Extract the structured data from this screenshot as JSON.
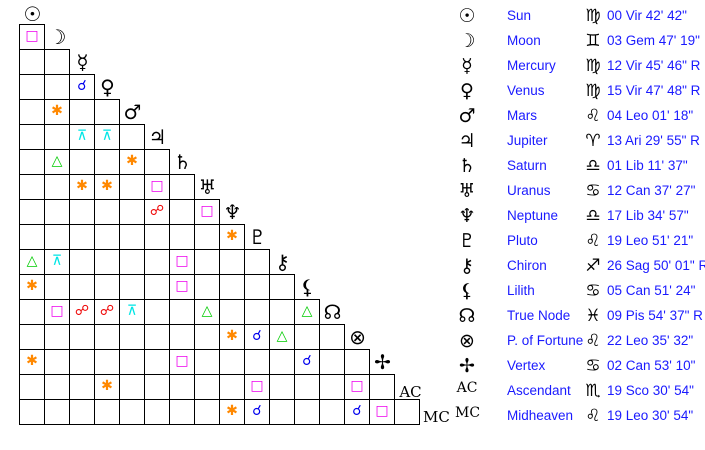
{
  "aspect_colors": {
    "conjunction": "#0000ee",
    "opposition": "#ee0000",
    "square": "#ee00ee",
    "trine": "#00cc00",
    "sextile": "#ff8800",
    "quincunx": "#00e5e5"
  },
  "aspect_glyphs": {
    "conjunction": "☌",
    "opposition": "☍",
    "square": "□",
    "trine": "△",
    "sextile": "✱",
    "quincunx": "⊼"
  },
  "bodies": [
    {
      "glyph": "☉",
      "name": "Sun",
      "sign": "♍",
      "position": "00 Vir 42' 42\""
    },
    {
      "glyph": "☽",
      "name": "Moon",
      "sign": "♊",
      "position": "03 Gem 47' 19\""
    },
    {
      "glyph": "☿",
      "name": "Mercury",
      "sign": "♍",
      "position": "12 Vir 45' 46\" R"
    },
    {
      "glyph": "♀",
      "name": "Venus",
      "sign": "♍",
      "position": "15 Vir 47' 48\" R"
    },
    {
      "glyph": "♂",
      "name": "Mars",
      "sign": "♌",
      "position": "04 Leo 01' 18\""
    },
    {
      "glyph": "♃",
      "name": "Jupiter",
      "sign": "♈",
      "position": "13 Ari 29' 55\" R"
    },
    {
      "glyph": "♄",
      "name": "Saturn",
      "sign": "♎",
      "position": "01 Lib 11' 37\""
    },
    {
      "glyph": "♅",
      "name": "Uranus",
      "sign": "♋",
      "position": "12 Can 37' 27\""
    },
    {
      "glyph": "♆",
      "name": "Neptune",
      "sign": "♎",
      "position": "17 Lib 34' 57\""
    },
    {
      "glyph": "♇",
      "name": "Pluto",
      "sign": "♌",
      "position": "19 Leo 51' 21\""
    },
    {
      "glyph": "⚷",
      "name": "Chiron",
      "sign": "♐",
      "position": "26 Sag 50' 01\" R"
    },
    {
      "glyph": "⚸",
      "name": "Lilith",
      "sign": "♋",
      "position": "05 Can 51' 24\""
    },
    {
      "glyph": "☊",
      "name": "True Node",
      "sign": "♓",
      "position": "09 Pis 54' 37\" R"
    },
    {
      "glyph": "⊗",
      "name": "P. of Fortune",
      "sign": "♌",
      "position": "22 Leo 35' 32\""
    },
    {
      "glyph": "✢",
      "name": "Vertex",
      "sign": "♋",
      "position": "02 Can 53' 10\""
    },
    {
      "glyph": "AC",
      "name": "Ascendant",
      "sign": "♏",
      "position": "19 Sco 30' 54\""
    },
    {
      "glyph": "MC",
      "name": "Midheaven",
      "sign": "♌",
      "position": "19 Leo 30' 54\""
    }
  ],
  "aspects": [
    {
      "row": 1,
      "col": 0,
      "type": "square"
    },
    {
      "row": 3,
      "col": 2,
      "type": "conjunction"
    },
    {
      "row": 4,
      "col": 1,
      "type": "sextile"
    },
    {
      "row": 5,
      "col": 2,
      "type": "quincunx"
    },
    {
      "row": 5,
      "col": 3,
      "type": "quincunx"
    },
    {
      "row": 6,
      "col": 1,
      "type": "trine"
    },
    {
      "row": 6,
      "col": 4,
      "type": "sextile"
    },
    {
      "row": 7,
      "col": 2,
      "type": "sextile"
    },
    {
      "row": 7,
      "col": 3,
      "type": "sextile"
    },
    {
      "row": 7,
      "col": 5,
      "type": "square"
    },
    {
      "row": 8,
      "col": 5,
      "type": "opposition"
    },
    {
      "row": 8,
      "col": 7,
      "type": "square"
    },
    {
      "row": 9,
      "col": 8,
      "type": "sextile"
    },
    {
      "row": 10,
      "col": 0,
      "type": "trine"
    },
    {
      "row": 10,
      "col": 1,
      "type": "quincunx"
    },
    {
      "row": 10,
      "col": 6,
      "type": "square"
    },
    {
      "row": 11,
      "col": 0,
      "type": "sextile"
    },
    {
      "row": 11,
      "col": 6,
      "type": "square"
    },
    {
      "row": 12,
      "col": 1,
      "type": "square"
    },
    {
      "row": 12,
      "col": 2,
      "type": "opposition"
    },
    {
      "row": 12,
      "col": 3,
      "type": "opposition"
    },
    {
      "row": 12,
      "col": 4,
      "type": "quincunx"
    },
    {
      "row": 12,
      "col": 7,
      "type": "trine"
    },
    {
      "row": 12,
      "col": 11,
      "type": "trine"
    },
    {
      "row": 13,
      "col": 8,
      "type": "sextile"
    },
    {
      "row": 13,
      "col": 9,
      "type": "conjunction"
    },
    {
      "row": 13,
      "col": 10,
      "type": "trine"
    },
    {
      "row": 14,
      "col": 0,
      "type": "sextile"
    },
    {
      "row": 14,
      "col": 6,
      "type": "square"
    },
    {
      "row": 14,
      "col": 11,
      "type": "conjunction"
    },
    {
      "row": 15,
      "col": 3,
      "type": "sextile"
    },
    {
      "row": 15,
      "col": 9,
      "type": "square"
    },
    {
      "row": 15,
      "col": 13,
      "type": "square"
    },
    {
      "row": 16,
      "col": 8,
      "type": "sextile"
    },
    {
      "row": 16,
      "col": 9,
      "type": "conjunction"
    },
    {
      "row": 16,
      "col": 13,
      "type": "conjunction"
    },
    {
      "row": 16,
      "col": 14,
      "type": "square"
    }
  ]
}
